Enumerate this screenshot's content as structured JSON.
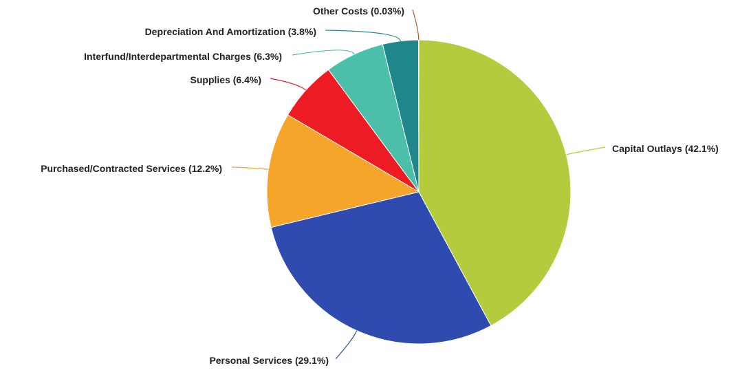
{
  "chart_data": {
    "type": "pie",
    "categories": [
      "Capital Outlays",
      "Personal Services",
      "Purchased/Contracted Services",
      "Supplies",
      "Interfund/Interdepartmental Charges",
      "Depreciation And Amortization",
      "Other Costs"
    ],
    "values": [
      42.1,
      29.1,
      12.2,
      6.4,
      6.3,
      3.8,
      0.03
    ],
    "value_labels": [
      "(42.1%)",
      "(29.1%)",
      "(12.2%)",
      "(6.4%)",
      "(6.3%)",
      "(3.8%)",
      "(0.03%)"
    ],
    "colors": [
      "#b5cb3e",
      "#2f4bb0",
      "#f6a52b",
      "#ed1c24",
      "#4bbfaa",
      "#1f878b",
      "#b5532f"
    ]
  }
}
